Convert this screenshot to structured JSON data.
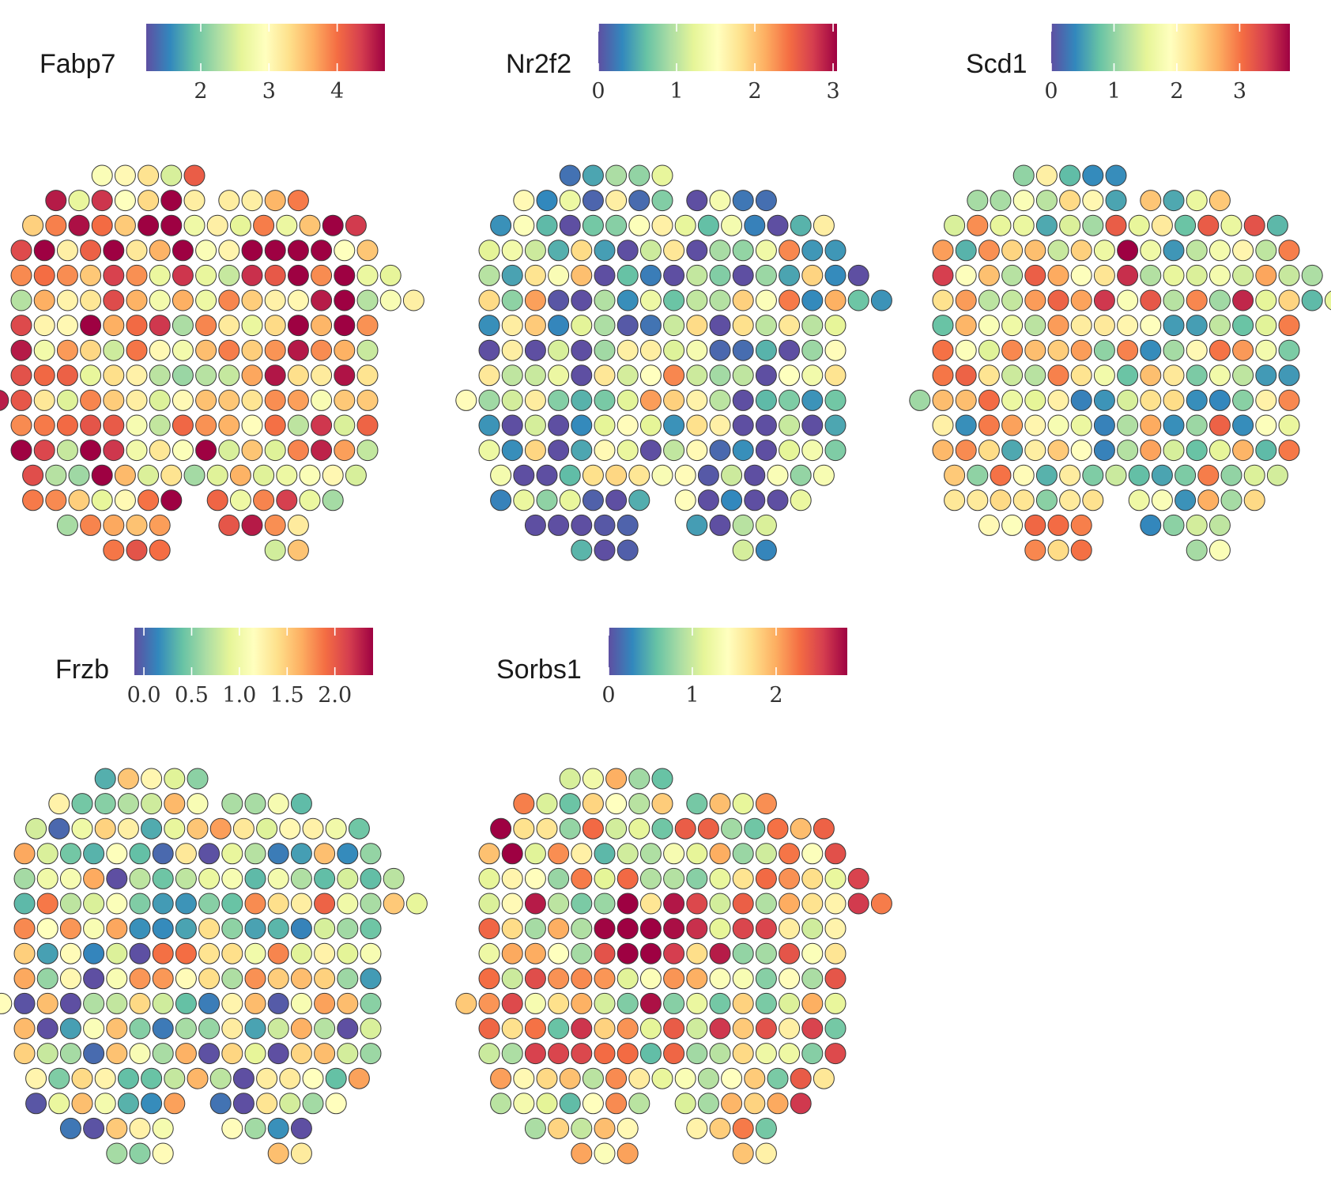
{
  "chart_data": [
    {
      "type": "scatter",
      "gene": "Fabp7",
      "colorbar": {
        "min": 1.2,
        "max": 4.7,
        "ticks": [
          2,
          3,
          4
        ],
        "tick_labels": [
          "2",
          "3",
          "4"
        ]
      },
      "seed": 11,
      "hot_bias": 0.15,
      "hot": [
        [
          -0.2,
          -0.7,
          0.3
        ],
        [
          0.5,
          -0.5,
          0.35
        ],
        [
          -0.55,
          -0.6,
          0.25
        ]
      ]
    },
    {
      "type": "scatter",
      "gene": "Nr2f2",
      "colorbar": {
        "min": 0,
        "max": 3.05,
        "ticks": [
          0,
          1,
          2,
          3
        ],
        "tick_labels": [
          "0",
          "1",
          "2",
          "3"
        ]
      },
      "seed": 23,
      "hot_bias": -0.25,
      "hot": [
        [
          0.0,
          0.05,
          0.3
        ],
        [
          -0.6,
          -0.55,
          0.25
        ],
        [
          0.65,
          -0.45,
          0.25
        ]
      ]
    },
    {
      "type": "scatter",
      "gene": "Scd1",
      "colorbar": {
        "min": 0,
        "max": 3.8,
        "ticks": [
          0,
          1,
          2,
          3
        ],
        "tick_labels": [
          "0",
          "1",
          "2",
          "3"
        ]
      },
      "seed": 37,
      "hot_bias": -0.05,
      "hot": [
        [
          0.0,
          -0.5,
          0.25
        ],
        [
          0.7,
          -0.45,
          0.25
        ],
        [
          -0.75,
          -0.4,
          0.2
        ]
      ]
    },
    {
      "type": "scatter",
      "gene": "Frzb",
      "colorbar": {
        "min": -0.1,
        "max": 2.4,
        "ticks": [
          0.0,
          0.5,
          1.0,
          1.5,
          2.0
        ],
        "tick_labels": [
          "0.0",
          "0.5",
          "1.0",
          "1.5",
          "2.0"
        ]
      },
      "seed": 51,
      "hot_bias": -0.15,
      "hot": [
        [
          0.1,
          -0.05,
          0.3
        ],
        [
          -0.8,
          -0.3,
          0.2
        ],
        [
          0.75,
          -0.3,
          0.25
        ]
      ]
    },
    {
      "type": "scatter",
      "gene": "Sorbs1",
      "colorbar": {
        "min": 0,
        "max": 2.85,
        "ticks": [
          0,
          1,
          2
        ],
        "tick_labels": [
          "0",
          "1",
          "2"
        ]
      },
      "seed": 67,
      "hot_bias": 0.05,
      "hot": [
        [
          -0.05,
          -0.1,
          0.35
        ],
        [
          -0.7,
          -0.6,
          0.25
        ],
        [
          0.7,
          -0.55,
          0.25
        ]
      ]
    }
  ]
}
